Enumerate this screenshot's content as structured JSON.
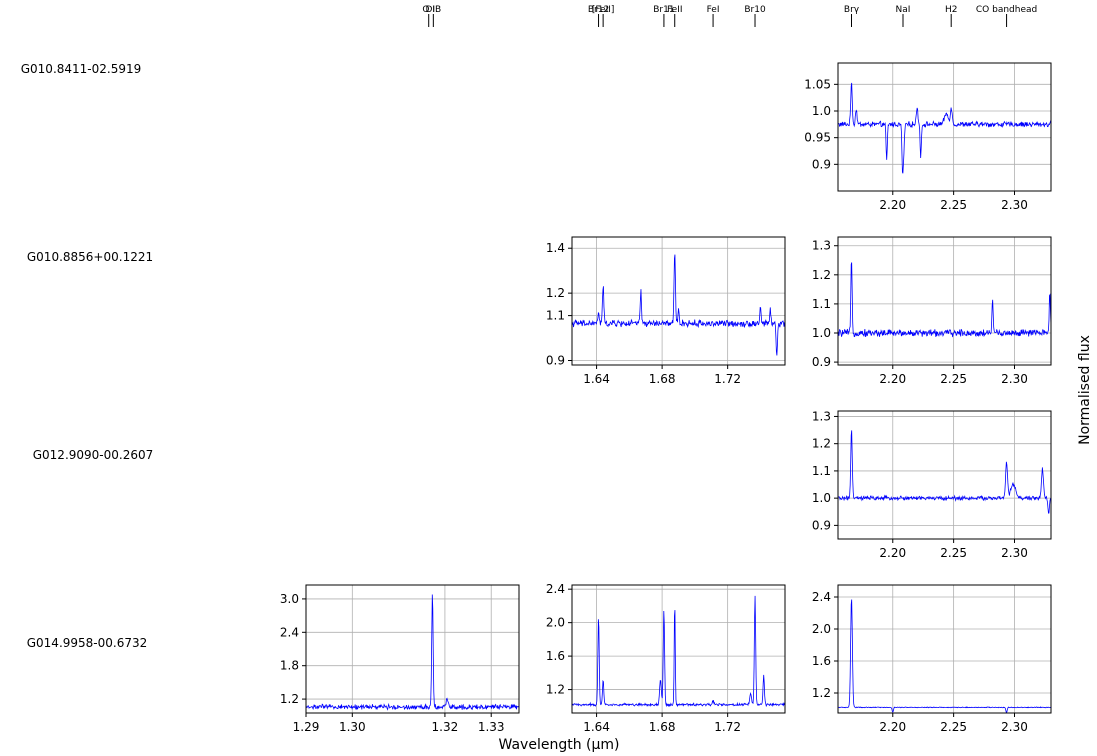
{
  "figure": {
    "xlabel": "Wavelength (µm)",
    "ylabel": "Normalised flux"
  },
  "line_markers": {
    "j": [
      {
        "label": "O I",
        "x": 1.3165
      },
      {
        "label": "DIB",
        "x": 1.3175
      }
    ],
    "h": [
      {
        "label": "Br12",
        "x": 1.6412
      },
      {
        "label": "[FeII]",
        "x": 1.644
      },
      {
        "label": "Br11",
        "x": 1.6811
      },
      {
        "label": "FeII",
        "x": 1.6877
      },
      {
        "label": "FeI",
        "x": 1.7111
      },
      {
        "label": "Br10",
        "x": 1.7367
      }
    ],
    "k": [
      {
        "label": "Brγ",
        "x": 2.1661
      },
      {
        "label": "NaI",
        "x": 2.2084
      },
      {
        "label": "H2",
        "x": 2.248
      },
      {
        "label": "CO bandhead",
        "x": 2.2935
      }
    ]
  },
  "sources": [
    "G010.8411-02.5919",
    "G010.8856+00.1221",
    "G012.9090-00.2607",
    "G014.9958-00.6732"
  ],
  "chart_data": [
    {
      "type": "line",
      "source": "G010.8411-02.5919",
      "band": "K",
      "xlim": [
        2.155,
        2.33
      ],
      "ylim": [
        0.85,
        1.09
      ],
      "xticks": [
        2.2,
        2.25,
        2.3
      ],
      "xtick_labels": [
        "2.20",
        "2.25",
        "2.30"
      ],
      "yticks": [
        0.9,
        0.95,
        1.0,
        1.05
      ],
      "ytick_labels": [
        "0.9",
        "0.95",
        "1.0",
        "1.05"
      ],
      "grid": true,
      "color": "#0000ff",
      "continuum": 0.975,
      "noise": 0.004,
      "features": [
        {
          "x": 2.1661,
          "amp": 0.08,
          "w": 0.0006
        },
        {
          "x": 2.17,
          "amp": 0.03,
          "w": 0.0006
        },
        {
          "x": 2.195,
          "amp": -0.07,
          "w": 0.0005
        },
        {
          "x": 2.208,
          "amp": -0.085,
          "w": 0.0005
        },
        {
          "x": 2.209,
          "amp": -0.055,
          "w": 0.0005
        },
        {
          "x": 2.22,
          "amp": 0.035,
          "w": 0.0006
        },
        {
          "x": 2.223,
          "amp": -0.06,
          "w": 0.0005
        },
        {
          "x": 2.244,
          "amp": 0.02,
          "w": 0.0015
        },
        {
          "x": 2.248,
          "amp": 0.03,
          "w": 0.0008
        }
      ]
    },
    {
      "type": "line",
      "source": "G010.8856+00.1221",
      "band": "H",
      "xlim": [
        1.625,
        1.755
      ],
      "ylim": [
        0.88,
        1.45
      ],
      "xticks": [
        1.64,
        1.68,
        1.72
      ],
      "xtick_labels": [
        "1.64",
        "1.68",
        "1.72"
      ],
      "yticks": [
        0.9,
        1.1,
        1.2,
        1.4
      ],
      "ytick_labels": [
        "0.9",
        "1.1",
        "1.2",
        "1.4"
      ],
      "grid": true,
      "color": "#0000ff",
      "continuum": 1.065,
      "noise": 0.012,
      "features": [
        {
          "x": 1.6412,
          "amp": 0.05,
          "w": 0.0004
        },
        {
          "x": 1.644,
          "amp": 0.17,
          "w": 0.0004
        },
        {
          "x": 1.667,
          "amp": 0.14,
          "w": 0.0004
        },
        {
          "x": 1.6877,
          "amp": 0.32,
          "w": 0.0004
        },
        {
          "x": 1.69,
          "amp": 0.06,
          "w": 0.0004
        },
        {
          "x": 1.74,
          "amp": 0.07,
          "w": 0.0004
        },
        {
          "x": 1.746,
          "amp": 0.06,
          "w": 0.0004
        },
        {
          "x": 1.75,
          "amp": -0.15,
          "w": 0.0004
        }
      ]
    },
    {
      "type": "line",
      "source": "G010.8856+00.1221",
      "band": "K",
      "xlim": [
        2.155,
        2.33
      ],
      "ylim": [
        0.89,
        1.33
      ],
      "xticks": [
        2.2,
        2.25,
        2.3
      ],
      "xtick_labels": [
        "2.20",
        "2.25",
        "2.30"
      ],
      "yticks": [
        0.9,
        1.0,
        1.1,
        1.2,
        1.3
      ],
      "ytick_labels": [
        "0.9",
        "1.0",
        "1.1",
        "1.2",
        "1.3"
      ],
      "grid": true,
      "color": "#0000ff",
      "continuum": 1.0,
      "noise": 0.01,
      "features": [
        {
          "x": 2.1661,
          "amp": 0.26,
          "w": 0.0005
        },
        {
          "x": 2.282,
          "amp": 0.12,
          "w": 0.0005
        },
        {
          "x": 2.329,
          "amp": 0.14,
          "w": 0.0005
        }
      ]
    },
    {
      "type": "line",
      "source": "G012.9090-00.2607",
      "band": "K",
      "xlim": [
        2.155,
        2.33
      ],
      "ylim": [
        0.85,
        1.32
      ],
      "xticks": [
        2.2,
        2.25,
        2.3
      ],
      "xtick_labels": [
        "2.20",
        "2.25",
        "2.30"
      ],
      "yticks": [
        0.9,
        1.0,
        1.1,
        1.2,
        1.3
      ],
      "ytick_labels": [
        "0.9",
        "1.0",
        "1.1",
        "1.2",
        "1.3"
      ],
      "grid": true,
      "color": "#0000ff",
      "continuum": 1.0,
      "noise": 0.006,
      "features": [
        {
          "x": 2.1661,
          "amp": 0.25,
          "w": 0.0006
        },
        {
          "x": 2.2935,
          "amp": 0.13,
          "w": 0.0008
        },
        {
          "x": 2.299,
          "amp": 0.05,
          "w": 0.002
        },
        {
          "x": 2.323,
          "amp": 0.11,
          "w": 0.0008
        },
        {
          "x": 2.328,
          "amp": -0.06,
          "w": 0.0006
        }
      ]
    },
    {
      "type": "line",
      "source": "G014.9958-00.6732",
      "band": "J",
      "xlim": [
        1.29,
        1.336
      ],
      "ylim": [
        0.95,
        3.25
      ],
      "xticks": [
        1.29,
        1.3,
        1.32,
        1.33
      ],
      "xtick_labels": [
        "1.29",
        "1.30",
        "1.32",
        "1.33"
      ],
      "yticks": [
        1.2,
        1.8,
        2.4,
        3.0
      ],
      "ytick_labels": [
        "1.2",
        "1.8",
        "2.4",
        "3.0"
      ],
      "grid": true,
      "color": "#0000ff",
      "continuum": 1.06,
      "noise": 0.035,
      "features": [
        {
          "x": 1.3173,
          "amp": 2.05,
          "w": 0.00015
        },
        {
          "x": 1.3205,
          "amp": 0.15,
          "w": 0.0002
        }
      ]
    },
    {
      "type": "line",
      "source": "G014.9958-00.6732",
      "band": "H",
      "xlim": [
        1.625,
        1.755
      ],
      "ylim": [
        0.92,
        2.45
      ],
      "xticks": [
        1.64,
        1.68,
        1.72
      ],
      "xtick_labels": [
        "1.64",
        "1.68",
        "1.72"
      ],
      "yticks": [
        1.2,
        1.6,
        2.0,
        2.4
      ],
      "ytick_labels": [
        "1.2",
        "1.6",
        "2.0",
        "2.4"
      ],
      "grid": true,
      "color": "#0000ff",
      "continuum": 1.02,
      "noise": 0.012,
      "features": [
        {
          "x": 1.6412,
          "amp": 1.05,
          "w": 0.0004
        },
        {
          "x": 1.644,
          "amp": 0.3,
          "w": 0.0004
        },
        {
          "x": 1.679,
          "amp": 0.3,
          "w": 0.0005
        },
        {
          "x": 1.6811,
          "amp": 1.15,
          "w": 0.0004
        },
        {
          "x": 1.6877,
          "amp": 1.25,
          "w": 0.0003
        },
        {
          "x": 1.7111,
          "amp": 0.05,
          "w": 0.0005
        },
        {
          "x": 1.734,
          "amp": 0.15,
          "w": 0.0005
        },
        {
          "x": 1.7367,
          "amp": 1.3,
          "w": 0.0004
        },
        {
          "x": 1.742,
          "amp": 0.35,
          "w": 0.0004
        }
      ]
    },
    {
      "type": "line",
      "source": "G014.9958-00.6732",
      "band": "K",
      "xlim": [
        2.155,
        2.33
      ],
      "ylim": [
        0.95,
        2.55
      ],
      "xticks": [
        2.2,
        2.25,
        2.3
      ],
      "xtick_labels": [
        "2.20",
        "2.25",
        "2.30"
      ],
      "yticks": [
        1.2,
        1.6,
        2.0,
        2.4
      ],
      "ytick_labels": [
        "1.2",
        "1.6",
        "2.0",
        "2.4"
      ],
      "grid": true,
      "color": "#0000ff",
      "continuum": 1.02,
      "noise": 0.004,
      "features": [
        {
          "x": 2.1661,
          "amp": 1.38,
          "w": 0.0007
        },
        {
          "x": 2.2,
          "amp": -0.06,
          "w": 0.0005
        },
        {
          "x": 2.2935,
          "amp": -0.07,
          "w": 0.0005
        }
      ]
    }
  ]
}
